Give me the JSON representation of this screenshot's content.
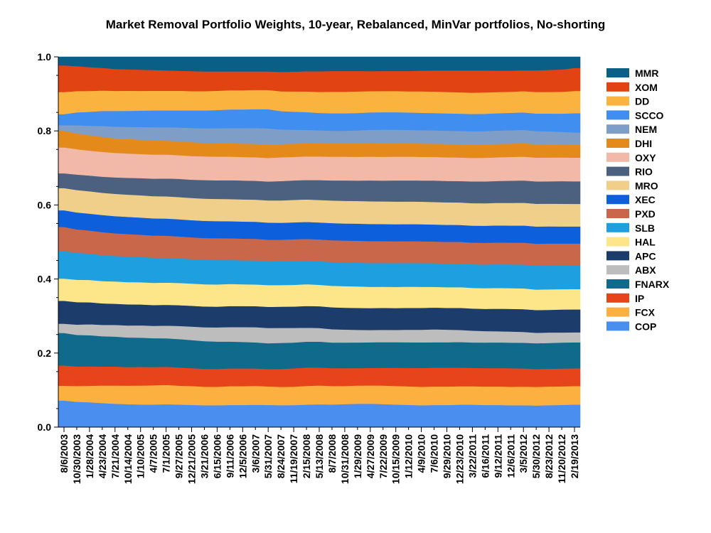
{
  "chart_data": {
    "type": "area",
    "stacked": true,
    "title": "Market Removal Portfolio Weights, 10-year, Rebalanced, MinVar portfolios, No-shorting",
    "xlabel": "",
    "ylabel": "",
    "ylim": [
      0,
      1
    ],
    "yticks": [
      "0.0",
      "0.2",
      "0.4",
      "0.6",
      "0.8",
      "1.0"
    ],
    "grid": false,
    "legend_position": "right",
    "x_tick_labels": [
      "8/6/2003",
      "10/30/2003",
      "1/28/2004",
      "4/23/2004",
      "7/21/2004",
      "10/14/2004",
      "1/10/2005",
      "4/7/2005",
      "7/1/2005",
      "9/27/2005",
      "12/21/2005",
      "3/21/2006",
      "6/15/2006",
      "9/11/2006",
      "12/5/2006",
      "3/6/2007",
      "5/31/2007",
      "8/24/2007",
      "11/19/2007",
      "2/15/2008",
      "5/13/2008",
      "8/7/2008",
      "10/31/2008",
      "1/29/2009",
      "4/27/2009",
      "7/22/2009",
      "10/15/2009",
      "1/12/2010",
      "4/9/2010",
      "7/6/2010",
      "9/29/2010",
      "12/23/2010",
      "3/22/2011",
      "6/16/2011",
      "9/12/2011",
      "12/6/2011",
      "3/5/2012",
      "5/30/2012",
      "8/23/2012",
      "11/20/2012",
      "2/19/2013"
    ],
    "series": [
      {
        "name": "COP",
        "color": "#4a8ff0",
        "values": [
          0.072,
          0.069,
          0.068,
          0.066,
          0.064,
          0.063,
          0.062,
          0.062,
          0.063,
          0.062,
          0.061,
          0.06,
          0.06,
          0.061,
          0.061,
          0.062,
          0.061,
          0.06,
          0.06,
          0.061,
          0.062,
          0.061,
          0.062,
          0.063,
          0.063,
          0.062,
          0.061,
          0.06,
          0.059,
          0.06,
          0.06,
          0.061,
          0.061,
          0.06,
          0.06,
          0.059,
          0.059,
          0.058,
          0.059,
          0.06,
          0.061
        ]
      },
      {
        "name": "FCX",
        "color": "#fbb040",
        "values": [
          0.04,
          0.043,
          0.045,
          0.048,
          0.05,
          0.051,
          0.052,
          0.053,
          0.053,
          0.052,
          0.052,
          0.051,
          0.051,
          0.052,
          0.052,
          0.052,
          0.051,
          0.05,
          0.05,
          0.051,
          0.051,
          0.05,
          0.049,
          0.049,
          0.049,
          0.05,
          0.05,
          0.05,
          0.05,
          0.05,
          0.05,
          0.05,
          0.05,
          0.05,
          0.05,
          0.05,
          0.05,
          0.05,
          0.05,
          0.05,
          0.05
        ]
      },
      {
        "name": "IP",
        "color": "#e8441c",
        "values": [
          0.055,
          0.053,
          0.053,
          0.052,
          0.052,
          0.051,
          0.051,
          0.05,
          0.05,
          0.05,
          0.049,
          0.049,
          0.049,
          0.049,
          0.049,
          0.048,
          0.048,
          0.049,
          0.05,
          0.05,
          0.049,
          0.048,
          0.048,
          0.047,
          0.047,
          0.048,
          0.049,
          0.05,
          0.051,
          0.051,
          0.051,
          0.051,
          0.05,
          0.05,
          0.05,
          0.05,
          0.049,
          0.048,
          0.048,
          0.048,
          0.048
        ]
      },
      {
        "name": "FNARX",
        "color": "#0f6a8c",
        "values": [
          0.088,
          0.086,
          0.085,
          0.083,
          0.082,
          0.081,
          0.08,
          0.079,
          0.078,
          0.078,
          0.077,
          0.076,
          0.075,
          0.074,
          0.073,
          0.072,
          0.071,
          0.071,
          0.07,
          0.07,
          0.07,
          0.069,
          0.069,
          0.069,
          0.069,
          0.069,
          0.069,
          0.069,
          0.069,
          0.069,
          0.069,
          0.069,
          0.069,
          0.069,
          0.069,
          0.069,
          0.069,
          0.069,
          0.069,
          0.07,
          0.07
        ]
      },
      {
        "name": "ABX",
        "color": "#bdbdbd",
        "values": [
          0.025,
          0.028,
          0.03,
          0.031,
          0.032,
          0.033,
          0.034,
          0.034,
          0.035,
          0.036,
          0.037,
          0.038,
          0.039,
          0.04,
          0.041,
          0.042,
          0.042,
          0.041,
          0.04,
          0.038,
          0.037,
          0.036,
          0.035,
          0.034,
          0.033,
          0.033,
          0.033,
          0.034,
          0.034,
          0.035,
          0.034,
          0.033,
          0.032,
          0.031,
          0.03,
          0.03,
          0.029,
          0.028,
          0.028,
          0.027,
          0.027
        ]
      },
      {
        "name": "APC",
        "color": "#1c3c6b",
        "values": [
          0.062,
          0.061,
          0.06,
          0.059,
          0.058,
          0.058,
          0.057,
          0.057,
          0.057,
          0.057,
          0.057,
          0.057,
          0.057,
          0.058,
          0.058,
          0.058,
          0.058,
          0.058,
          0.058,
          0.059,
          0.059,
          0.059,
          0.059,
          0.059,
          0.059,
          0.059,
          0.059,
          0.059,
          0.059,
          0.059,
          0.059,
          0.06,
          0.06,
          0.06,
          0.061,
          0.061,
          0.061,
          0.061,
          0.061,
          0.062,
          0.062
        ]
      },
      {
        "name": "HAL",
        "color": "#fde68a",
        "values": [
          0.06,
          0.061,
          0.061,
          0.061,
          0.061,
          0.061,
          0.061,
          0.061,
          0.061,
          0.061,
          0.061,
          0.061,
          0.061,
          0.061,
          0.06,
          0.06,
          0.06,
          0.059,
          0.059,
          0.059,
          0.058,
          0.058,
          0.058,
          0.058,
          0.057,
          0.057,
          0.057,
          0.057,
          0.057,
          0.056,
          0.056,
          0.056,
          0.056,
          0.056,
          0.056,
          0.056,
          0.056,
          0.055,
          0.055,
          0.055,
          0.055
        ]
      },
      {
        "name": "SLB",
        "color": "#1ea0e0",
        "values": [
          0.075,
          0.073,
          0.072,
          0.071,
          0.07,
          0.07,
          0.069,
          0.069,
          0.068,
          0.068,
          0.067,
          0.067,
          0.067,
          0.066,
          0.066,
          0.066,
          0.065,
          0.065,
          0.065,
          0.064,
          0.064,
          0.064,
          0.064,
          0.064,
          0.064,
          0.064,
          0.064,
          0.064,
          0.064,
          0.064,
          0.064,
          0.064,
          0.064,
          0.064,
          0.064,
          0.064,
          0.064,
          0.064,
          0.064,
          0.064,
          0.064
        ]
      },
      {
        "name": "PXD",
        "color": "#c8674a",
        "values": [
          0.065,
          0.064,
          0.063,
          0.063,
          0.062,
          0.062,
          0.061,
          0.061,
          0.061,
          0.06,
          0.06,
          0.06,
          0.06,
          0.06,
          0.06,
          0.06,
          0.06,
          0.059,
          0.059,
          0.059,
          0.059,
          0.059,
          0.059,
          0.059,
          0.059,
          0.059,
          0.059,
          0.059,
          0.059,
          0.059,
          0.059,
          0.059,
          0.059,
          0.059,
          0.059,
          0.059,
          0.059,
          0.059,
          0.059,
          0.059,
          0.059
        ]
      },
      {
        "name": "XEC",
        "color": "#0d5fdb",
        "values": [
          0.045,
          0.046,
          0.046,
          0.047,
          0.047,
          0.047,
          0.047,
          0.047,
          0.047,
          0.047,
          0.047,
          0.047,
          0.047,
          0.047,
          0.047,
          0.047,
          0.047,
          0.046,
          0.046,
          0.046,
          0.046,
          0.046,
          0.046,
          0.046,
          0.046,
          0.046,
          0.046,
          0.046,
          0.046,
          0.046,
          0.046,
          0.046,
          0.046,
          0.046,
          0.046,
          0.046,
          0.046,
          0.046,
          0.046,
          0.046,
          0.046
        ]
      },
      {
        "name": "MRO",
        "color": "#f0cf8b",
        "values": [
          0.06,
          0.061,
          0.061,
          0.061,
          0.061,
          0.061,
          0.061,
          0.061,
          0.061,
          0.061,
          0.061,
          0.061,
          0.061,
          0.061,
          0.061,
          0.061,
          0.061,
          0.061,
          0.061,
          0.061,
          0.061,
          0.061,
          0.061,
          0.061,
          0.061,
          0.061,
          0.061,
          0.061,
          0.061,
          0.061,
          0.061,
          0.061,
          0.061,
          0.061,
          0.061,
          0.061,
          0.061,
          0.061,
          0.061,
          0.061,
          0.061
        ]
      },
      {
        "name": "RIO",
        "color": "#4c6080",
        "values": [
          0.04,
          0.042,
          0.043,
          0.044,
          0.045,
          0.046,
          0.047,
          0.048,
          0.049,
          0.05,
          0.05,
          0.051,
          0.051,
          0.052,
          0.052,
          0.052,
          0.052,
          0.053,
          0.053,
          0.053,
          0.054,
          0.054,
          0.055,
          0.055,
          0.056,
          0.056,
          0.057,
          0.057,
          0.057,
          0.058,
          0.058,
          0.058,
          0.059,
          0.059,
          0.059,
          0.06,
          0.06,
          0.06,
          0.06,
          0.061,
          0.061
        ]
      },
      {
        "name": "OXY",
        "color": "#f2b8a8",
        "values": [
          0.07,
          0.069,
          0.068,
          0.068,
          0.067,
          0.067,
          0.066,
          0.066,
          0.066,
          0.065,
          0.065,
          0.065,
          0.065,
          0.065,
          0.065,
          0.065,
          0.065,
          0.065,
          0.064,
          0.064,
          0.064,
          0.064,
          0.064,
          0.064,
          0.064,
          0.064,
          0.064,
          0.064,
          0.064,
          0.064,
          0.064,
          0.064,
          0.064,
          0.064,
          0.064,
          0.064,
          0.064,
          0.064,
          0.064,
          0.064,
          0.064
        ]
      },
      {
        "name": "DHI",
        "color": "#e38a1a",
        "values": [
          0.045,
          0.043,
          0.042,
          0.041,
          0.04,
          0.04,
          0.039,
          0.039,
          0.038,
          0.038,
          0.038,
          0.037,
          0.037,
          0.037,
          0.037,
          0.037,
          0.036,
          0.036,
          0.036,
          0.036,
          0.036,
          0.036,
          0.036,
          0.036,
          0.036,
          0.036,
          0.036,
          0.036,
          0.036,
          0.036,
          0.036,
          0.036,
          0.036,
          0.036,
          0.036,
          0.036,
          0.036,
          0.036,
          0.036,
          0.036,
          0.036
        ]
      },
      {
        "name": "NEM",
        "color": "#7f9ec7",
        "values": [
          0.015,
          0.022,
          0.026,
          0.03,
          0.032,
          0.033,
          0.035,
          0.036,
          0.037,
          0.038,
          0.039,
          0.04,
          0.041,
          0.042,
          0.043,
          0.044,
          0.045,
          0.04,
          0.038,
          0.036,
          0.035,
          0.034,
          0.034,
          0.035,
          0.036,
          0.037,
          0.037,
          0.036,
          0.036,
          0.036,
          0.036,
          0.036,
          0.036,
          0.036,
          0.036,
          0.036,
          0.036,
          0.035,
          0.034,
          0.033,
          0.032
        ]
      },
      {
        "name": "SCCO",
        "color": "#3f8ef0",
        "values": [
          0.03,
          0.035,
          0.038,
          0.041,
          0.043,
          0.044,
          0.045,
          0.046,
          0.046,
          0.047,
          0.048,
          0.049,
          0.05,
          0.051,
          0.051,
          0.052,
          0.053,
          0.05,
          0.049,
          0.048,
          0.047,
          0.047,
          0.047,
          0.047,
          0.047,
          0.047,
          0.047,
          0.047,
          0.047,
          0.047,
          0.047,
          0.047,
          0.047,
          0.047,
          0.047,
          0.047,
          0.047,
          0.047,
          0.048,
          0.049,
          0.052
        ]
      },
      {
        "name": "DD",
        "color": "#fbb340",
        "values": [
          0.06,
          0.058,
          0.057,
          0.056,
          0.055,
          0.055,
          0.054,
          0.054,
          0.054,
          0.054,
          0.053,
          0.053,
          0.053,
          0.053,
          0.053,
          0.053,
          0.053,
          0.054,
          0.055,
          0.056,
          0.057,
          0.058,
          0.058,
          0.058,
          0.057,
          0.057,
          0.057,
          0.057,
          0.058,
          0.058,
          0.058,
          0.058,
          0.058,
          0.058,
          0.057,
          0.057,
          0.057,
          0.058,
          0.058,
          0.059,
          0.06
        ]
      },
      {
        "name": "XOM",
        "color": "#e14412",
        "values": [
          0.072,
          0.068,
          0.065,
          0.062,
          0.06,
          0.059,
          0.058,
          0.057,
          0.056,
          0.055,
          0.055,
          0.054,
          0.053,
          0.052,
          0.052,
          0.051,
          0.051,
          0.053,
          0.054,
          0.055,
          0.056,
          0.056,
          0.056,
          0.055,
          0.054,
          0.054,
          0.054,
          0.055,
          0.056,
          0.057,
          0.058,
          0.059,
          0.06,
          0.059,
          0.058,
          0.057,
          0.056,
          0.058,
          0.059,
          0.06,
          0.062
        ]
      },
      {
        "name": "MMR",
        "color": "#0a5f87",
        "values": [
          0.023,
          0.025,
          0.028,
          0.03,
          0.033,
          0.034,
          0.035,
          0.036,
          0.037,
          0.038,
          0.039,
          0.04,
          0.04,
          0.04,
          0.04,
          0.04,
          0.04,
          0.041,
          0.04,
          0.039,
          0.039,
          0.038,
          0.038,
          0.038,
          0.038,
          0.038,
          0.038,
          0.038,
          0.037,
          0.037,
          0.037,
          0.037,
          0.037,
          0.037,
          0.037,
          0.037,
          0.036,
          0.036,
          0.035,
          0.034,
          0.03
        ]
      }
    ]
  }
}
